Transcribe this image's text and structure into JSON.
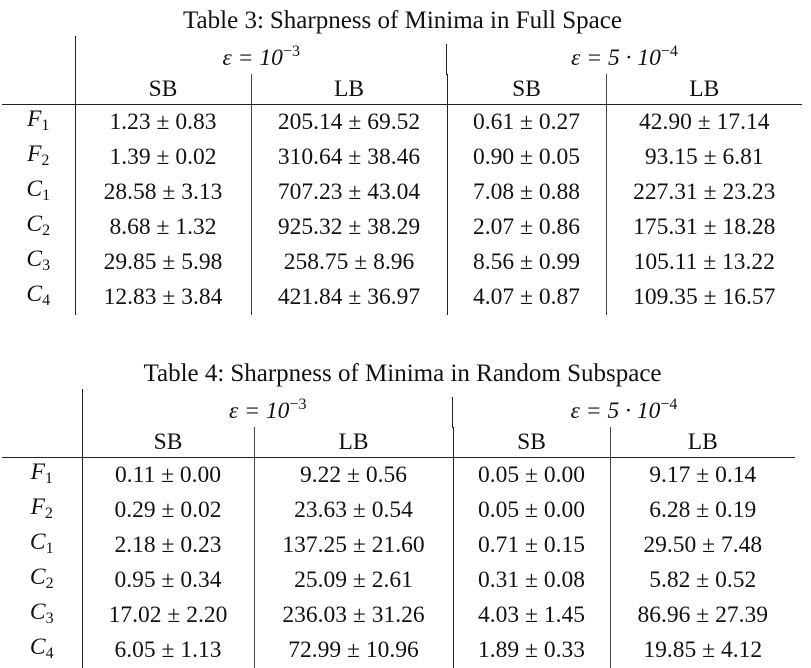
{
  "tables": [
    {
      "caption_label": "Table 3:",
      "caption_text": "Sharpness of Minima in Full Space",
      "eps_groups": [
        {
          "prefix": "ε = 10",
          "exp": "−3"
        },
        {
          "prefix": "ε = 5 · 10",
          "exp": "−4"
        }
      ],
      "subheaders": [
        "SB",
        "LB",
        "SB",
        "LB"
      ],
      "rows": [
        {
          "label": "F",
          "sub": "1",
          "cells": [
            "1.23 ± 0.83",
            "205.14 ± 69.52",
            "0.61 ± 0.27",
            "42.90 ± 17.14"
          ]
        },
        {
          "label": "F",
          "sub": "2",
          "cells": [
            "1.39 ± 0.02",
            "310.64 ± 38.46",
            "0.90 ± 0.05",
            "93.15 ± 6.81"
          ]
        },
        {
          "label": "C",
          "sub": "1",
          "cells": [
            "28.58 ± 3.13",
            "707.23 ± 43.04",
            "7.08 ± 0.88",
            "227.31 ± 23.23"
          ]
        },
        {
          "label": "C",
          "sub": "2",
          "cells": [
            "8.68 ± 1.32",
            "925.32 ± 38.29",
            "2.07 ± 0.86",
            "175.31 ± 18.28"
          ]
        },
        {
          "label": "C",
          "sub": "3",
          "cells": [
            "29.85 ± 5.98",
            "258.75 ± 8.96",
            "8.56 ± 0.99",
            "105.11 ± 13.22"
          ]
        },
        {
          "label": "C",
          "sub": "4",
          "cells": [
            "12.83 ± 3.84",
            "421.84 ± 36.97",
            "4.07 ± 0.87",
            "109.35 ± 16.57"
          ]
        }
      ]
    },
    {
      "caption_label": "Table 4:",
      "caption_text": "Sharpness of Minima in Random Subspace",
      "eps_groups": [
        {
          "prefix": "ε = 10",
          "exp": "−3"
        },
        {
          "prefix": "ε = 5 · 10",
          "exp": "−4"
        }
      ],
      "subheaders": [
        "SB",
        "LB",
        "SB",
        "LB"
      ],
      "rows": [
        {
          "label": "F",
          "sub": "1",
          "cells": [
            "0.11 ± 0.00",
            "9.22 ± 0.56",
            "0.05 ± 0.00",
            "9.17 ± 0.14"
          ]
        },
        {
          "label": "F",
          "sub": "2",
          "cells": [
            "0.29 ± 0.02",
            "23.63 ± 0.54",
            "0.05 ± 0.00",
            "6.28 ± 0.19"
          ]
        },
        {
          "label": "C",
          "sub": "1",
          "cells": [
            "2.18 ± 0.23",
            "137.25 ± 21.60",
            "0.71 ± 0.15",
            "29.50 ± 7.48"
          ]
        },
        {
          "label": "C",
          "sub": "2",
          "cells": [
            "0.95 ± 0.34",
            "25.09 ± 2.61",
            "0.31 ± 0.08",
            "5.82 ± 0.52"
          ]
        },
        {
          "label": "C",
          "sub": "3",
          "cells": [
            "17.02 ± 2.20",
            "236.03 ± 31.26",
            "4.03 ± 1.45",
            "86.96 ± 27.39"
          ]
        },
        {
          "label": "C",
          "sub": "4",
          "cells": [
            "6.05 ± 1.13",
            "72.99 ± 10.96",
            "1.89 ± 0.33",
            "19.85 ± 4.12"
          ]
        }
      ]
    }
  ]
}
